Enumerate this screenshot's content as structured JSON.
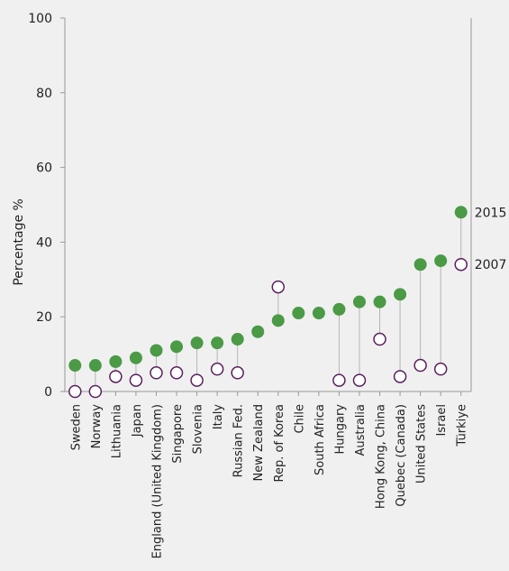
{
  "chart_data": {
    "type": "dot-plot",
    "ylabel": "Percentage %",
    "ylim": [
      0,
      100
    ],
    "yticks": [
      0,
      20,
      40,
      60,
      80,
      100
    ],
    "grid": false,
    "categories": [
      "Sweden",
      "Norway",
      "Lithuania",
      "Japan",
      "England (United Kingdom)",
      "Singapore",
      "Slovenia",
      "Italy",
      "Russian Fed.",
      "New Zealand",
      "Rep. of Korea",
      "Chile",
      "South Africa",
      "Hungary",
      "Australia",
      "Hong Kong, China",
      "Quebec (Canada)",
      "United States",
      "Israel",
      "Türkiye"
    ],
    "series": [
      {
        "name": "2015",
        "marker": "filled-circle",
        "color": "#4a9a46",
        "values": [
          7,
          7,
          8,
          9,
          11,
          12,
          13,
          13,
          14,
          16,
          19,
          21,
          21,
          22,
          24,
          24,
          26,
          34,
          35,
          48
        ]
      },
      {
        "name": "2007",
        "marker": "open-circle",
        "color": "#5a1f5e",
        "values": [
          0,
          0,
          4,
          3,
          5,
          5,
          3,
          6,
          5,
          null,
          28,
          null,
          null,
          3,
          3,
          14,
          4,
          7,
          6,
          34
        ]
      }
    ],
    "connector_color": "#b5b5b5",
    "axis_color": "#999999"
  }
}
